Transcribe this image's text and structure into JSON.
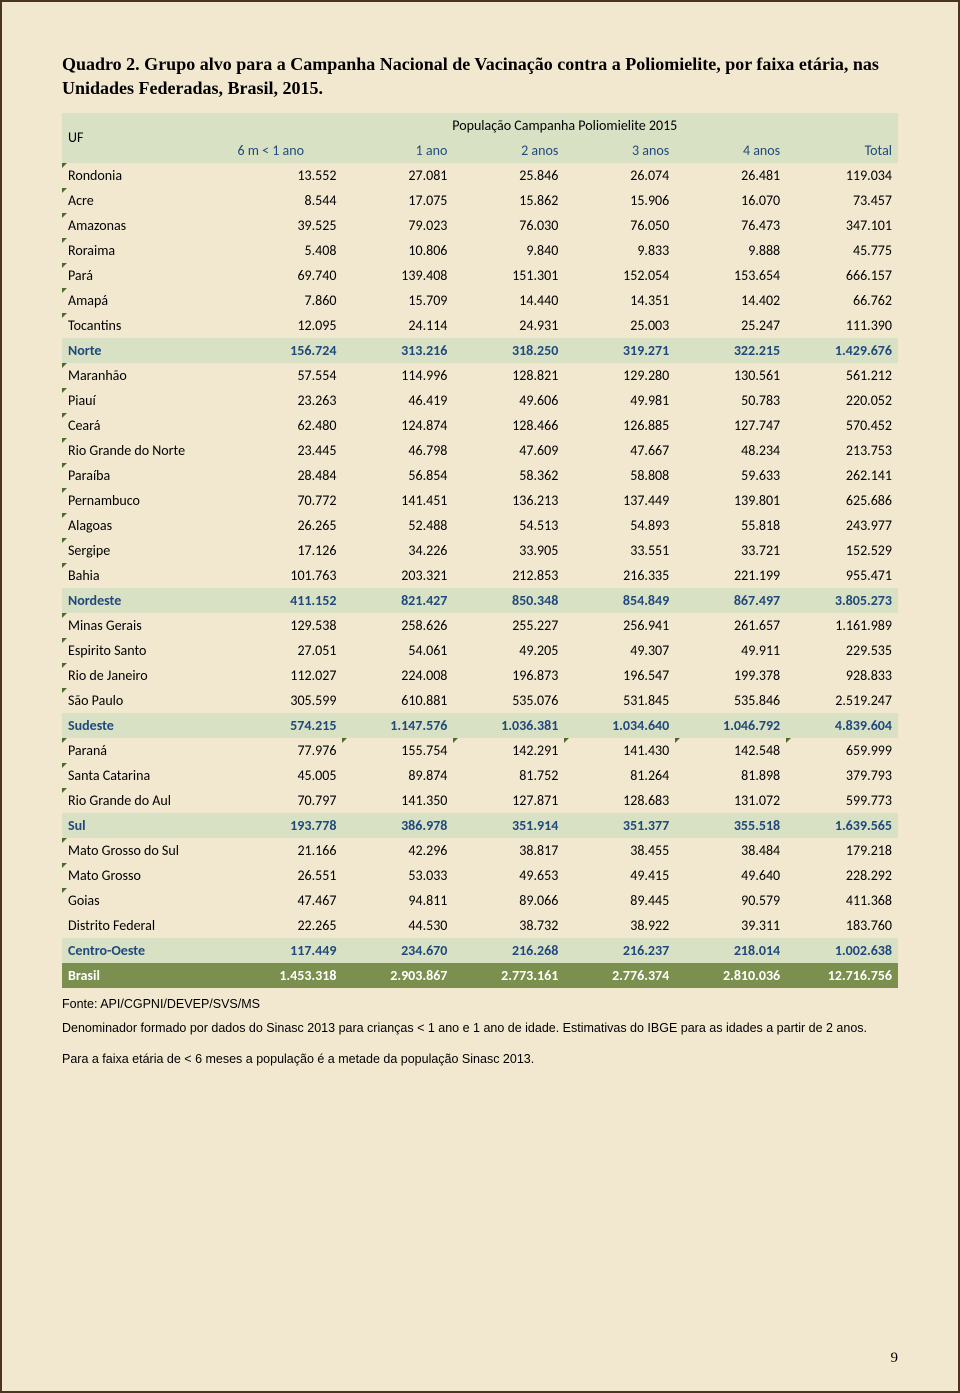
{
  "title": "Quadro 2. Grupo alvo para a Campanha Nacional de Vacinação contra a Poliomielite, por faixa etária, nas Unidades Federadas, Brasil, 2015.",
  "header": {
    "uf": "UF",
    "pop": "População Campanha Poliomielite 2015",
    "cols": [
      "6 m < 1 ano",
      "1 ano",
      "2 anos",
      "3 anos",
      "4 anos",
      "Total"
    ]
  },
  "rows": [
    {
      "type": "data",
      "m": 1,
      "label": "Rondonia",
      "v": [
        "13.552",
        "27.081",
        "25.846",
        "26.074",
        "26.481",
        "119.034"
      ]
    },
    {
      "type": "data",
      "m": 1,
      "label": "Acre",
      "v": [
        "8.544",
        "17.075",
        "15.862",
        "15.906",
        "16.070",
        "73.457"
      ]
    },
    {
      "type": "data",
      "m": 1,
      "label": "Amazonas",
      "v": [
        "39.525",
        "79.023",
        "76.030",
        "76.050",
        "76.473",
        "347.101"
      ]
    },
    {
      "type": "data",
      "m": 1,
      "label": "Roraima",
      "v": [
        "5.408",
        "10.806",
        "9.840",
        "9.833",
        "9.888",
        "45.775"
      ]
    },
    {
      "type": "data",
      "m": 1,
      "label": "Pará",
      "v": [
        "69.740",
        "139.408",
        "151.301",
        "152.054",
        "153.654",
        "666.157"
      ]
    },
    {
      "type": "data",
      "m": 1,
      "label": "Amapá",
      "v": [
        "7.860",
        "15.709",
        "14.440",
        "14.351",
        "14.402",
        "66.762"
      ]
    },
    {
      "type": "data",
      "m": 1,
      "label": "Tocantins",
      "v": [
        "12.095",
        "24.114",
        "24.931",
        "25.003",
        "25.247",
        "111.390"
      ]
    },
    {
      "type": "region",
      "label": "Norte",
      "v": [
        "156.724",
        "313.216",
        "318.250",
        "319.271",
        "322.215",
        "1.429.676"
      ]
    },
    {
      "type": "data",
      "m": 1,
      "label": "Maranhão",
      "v": [
        "57.554",
        "114.996",
        "128.821",
        "129.280",
        "130.561",
        "561.212"
      ]
    },
    {
      "type": "data",
      "m": 1,
      "label": "Piauí",
      "v": [
        "23.263",
        "46.419",
        "49.606",
        "49.981",
        "50.783",
        "220.052"
      ]
    },
    {
      "type": "data",
      "m": 1,
      "label": "Ceará",
      "v": [
        "62.480",
        "124.874",
        "128.466",
        "126.885",
        "127.747",
        "570.452"
      ]
    },
    {
      "type": "data",
      "m": 1,
      "label": "Rio Grande do Norte",
      "v": [
        "23.445",
        "46.798",
        "47.609",
        "47.667",
        "48.234",
        "213.753"
      ]
    },
    {
      "type": "data",
      "m": 1,
      "label": "Paraíba",
      "v": [
        "28.484",
        "56.854",
        "58.362",
        "58.808",
        "59.633",
        "262.141"
      ]
    },
    {
      "type": "data",
      "m": 1,
      "label": "Pernambuco",
      "v": [
        "70.772",
        "141.451",
        "136.213",
        "137.449",
        "139.801",
        "625.686"
      ]
    },
    {
      "type": "data",
      "m": 1,
      "label": "Alagoas",
      "v": [
        "26.265",
        "52.488",
        "54.513",
        "54.893",
        "55.818",
        "243.977"
      ]
    },
    {
      "type": "data",
      "m": 1,
      "label": "Sergipe",
      "v": [
        "17.126",
        "34.226",
        "33.905",
        "33.551",
        "33.721",
        "152.529"
      ]
    },
    {
      "type": "data",
      "m": 1,
      "label": "Bahia",
      "v": [
        "101.763",
        "203.321",
        "212.853",
        "216.335",
        "221.199",
        "955.471"
      ]
    },
    {
      "type": "region",
      "label": "Nordeste",
      "v": [
        "411.152",
        "821.427",
        "850.348",
        "854.849",
        "867.497",
        "3.805.273"
      ]
    },
    {
      "type": "data",
      "m": 1,
      "label": "Minas Gerais",
      "v": [
        "129.538",
        "258.626",
        "255.227",
        "256.941",
        "261.657",
        "1.161.989"
      ]
    },
    {
      "type": "data",
      "m": 1,
      "label": "Espirito Santo",
      "v": [
        "27.051",
        "54.061",
        "49.205",
        "49.307",
        "49.911",
        "229.535"
      ]
    },
    {
      "type": "data",
      "m": 1,
      "label": "Rio de Janeiro",
      "v": [
        "112.027",
        "224.008",
        "196.873",
        "196.547",
        "199.378",
        "928.833"
      ]
    },
    {
      "type": "data",
      "m": 1,
      "label": "São Paulo",
      "v": [
        "305.599",
        "610.881",
        "535.076",
        "531.845",
        "535.846",
        "2.519.247"
      ]
    },
    {
      "type": "region",
      "label": "Sudeste",
      "v": [
        "574.215",
        "1.147.576",
        "1.036.381",
        "1.034.640",
        "1.046.792",
        "4.839.604"
      ]
    },
    {
      "type": "data",
      "m": 1,
      "label": "Paraná",
      "v": [
        "77.976",
        "155.754",
        "142.291",
        "141.430",
        "142.548",
        "659.999"
      ],
      "markAll": true
    },
    {
      "type": "data",
      "m": 1,
      "label": "Santa Catarina",
      "v": [
        "45.005",
        "89.874",
        "81.752",
        "81.264",
        "81.898",
        "379.793"
      ]
    },
    {
      "type": "data",
      "m": 1,
      "label": "Rio Grande do Aul",
      "v": [
        "70.797",
        "141.350",
        "127.871",
        "128.683",
        "131.072",
        "599.773"
      ]
    },
    {
      "type": "region",
      "label": "Sul",
      "v": [
        "193.778",
        "386.978",
        "351.914",
        "351.377",
        "355.518",
        "1.639.565"
      ]
    },
    {
      "type": "data",
      "m": 1,
      "label": "Mato Grosso do Sul",
      "v": [
        "21.166",
        "42.296",
        "38.817",
        "38.455",
        "38.484",
        "179.218"
      ]
    },
    {
      "type": "data",
      "m": 1,
      "label": "Mato Grosso",
      "v": [
        "26.551",
        "53.033",
        "49.653",
        "49.415",
        "49.640",
        "228.292"
      ]
    },
    {
      "type": "data",
      "m": 1,
      "label": "Goias",
      "v": [
        "47.467",
        "94.811",
        "89.066",
        "89.445",
        "90.579",
        "411.368"
      ]
    },
    {
      "type": "data",
      "m": 0,
      "label": "Distrito Federal",
      "v": [
        "22.265",
        "44.530",
        "38.732",
        "38.922",
        "39.311",
        "183.760"
      ]
    },
    {
      "type": "region",
      "label": "Centro-Oeste",
      "v": [
        "117.449",
        "234.670",
        "216.268",
        "216.237",
        "218.014",
        "1.002.638"
      ]
    },
    {
      "type": "brasil",
      "label": "Brasil",
      "v": [
        "1.453.318",
        "2.903.867",
        "2.773.161",
        "2.776.374",
        "2.810.036",
        "12.716.756"
      ]
    }
  ],
  "footnotes": [
    "Fonte: API/CGPNI/DEVEP/SVS/MS",
    "Denominador formado por dados do Sinasc 2013 para crianças < 1 ano e 1 ano de idade. Estimativas do IBGE para as idades a partir de 2 anos.",
    "Para a faixa etária de < 6 meses a população é a metade da população Sinasc 2013."
  ],
  "page_num": "9"
}
